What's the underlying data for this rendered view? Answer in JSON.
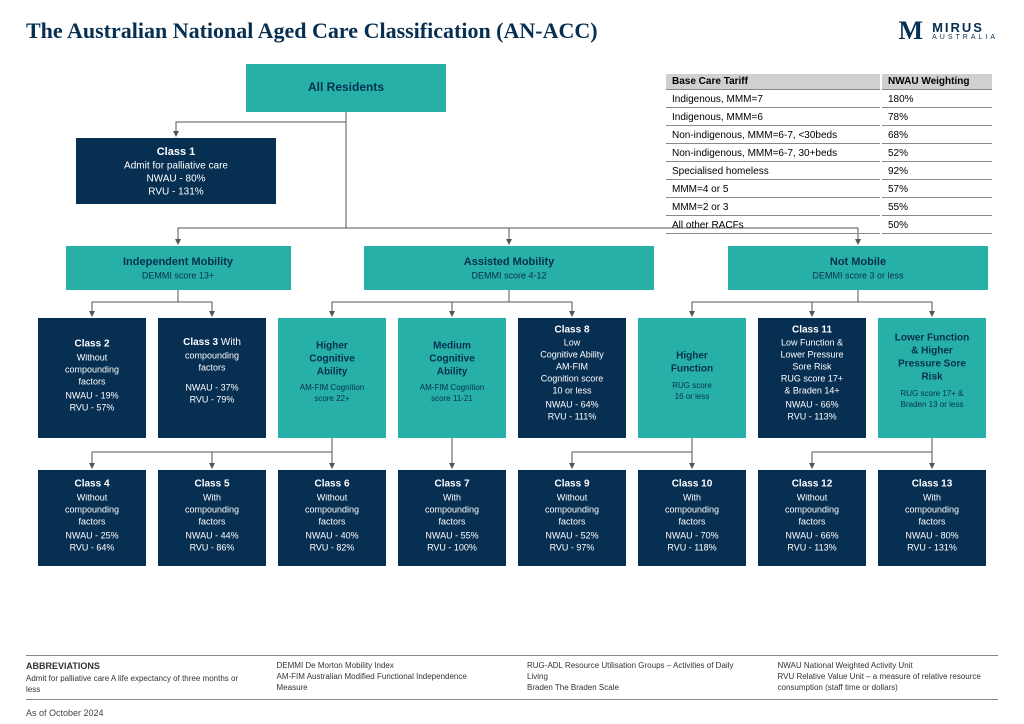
{
  "title": "The Australian National Aged Care Classification (AN-ACC)",
  "brand": {
    "name": "MIRUS",
    "sub": "AUSTRALIA"
  },
  "root": {
    "label": "All Residents"
  },
  "class1": {
    "h": "Class 1",
    "l1": "Admit for palliative care",
    "l2": "NWAU - 80%",
    "l3": "RVU - 131%"
  },
  "mob": {
    "ind": {
      "h": "Independent Mobility",
      "s": "DEMMI score 13+"
    },
    "ass": {
      "h": "Assisted Mobility",
      "s": "DEMMI score 4-12"
    },
    "not": {
      "h": "Not Mobile",
      "s": "DEMMI score 3 or less"
    }
  },
  "c2": {
    "h": "Class 2",
    "l1": "Without",
    "l2": "compounding",
    "l3": "factors",
    "l4": "NWAU - 19%",
    "l5": "RVU - 57%"
  },
  "c3": {
    "h": "Class 3",
    "h2": "With",
    "l1": "compounding",
    "l2": "factors",
    "l4": "NWAU - 37%",
    "l5": "RVU - 79%"
  },
  "hca": {
    "h": "Higher",
    "h2": "Cognitive",
    "h3": "Ability",
    "s": "AM-FIM Cognition",
    "s2": "score 22+"
  },
  "mca": {
    "h": "Medium",
    "h2": "Cognitive",
    "h3": "Ability",
    "s": "AM-FIM Cognition",
    "s2": "score 11-21"
  },
  "c8": {
    "h": "Class 8",
    "l1": "Low",
    "l2": "Cognitive Ability",
    "l3": "AM-FIM",
    "l4": "Cognition score",
    "l5": "10 or less",
    "l6": "NWAU - 64%",
    "l7": "RVU - 111%"
  },
  "hf": {
    "h": "Higher",
    "h2": "Function",
    "s": "RUG score",
    "s2": "16 or less"
  },
  "c11": {
    "h": "Class 11",
    "l1": "Low Function &",
    "l2": "Lower Pressure",
    "l3": "Sore Risk",
    "l4": "RUG score 17+",
    "l5": "& Braden 14+",
    "l6": "NWAU - 66%",
    "l7": "RVU - 113%"
  },
  "lfr": {
    "h": "Lower Function",
    "h2": "& Higher",
    "h3": "Pressure Sore",
    "h4": "Risk",
    "s": "RUG score 17+ &",
    "s2": "Braden 13 or less"
  },
  "c4": {
    "h": "Class 4",
    "l1": "Without",
    "l2": "compounding",
    "l3": "factors",
    "l4": "NWAU - 25%",
    "l5": "RVU - 64%"
  },
  "c5": {
    "h": "Class 5",
    "l1": "With",
    "l2": "compounding",
    "l3": "factors",
    "l4": "NWAU - 44%",
    "l5": "RVU - 86%"
  },
  "c6": {
    "h": "Class 6",
    "l1": "Without",
    "l2": "compounding",
    "l3": "factors",
    "l4": "NWAU - 40%",
    "l5": "RVU - 82%"
  },
  "c7": {
    "h": "Class 7",
    "l1": "With",
    "l2": "compounding",
    "l3": "factors",
    "l4": "NWAU - 55%",
    "l5": "RVU - 100%"
  },
  "c9": {
    "h": "Class 9",
    "l1": "Without",
    "l2": "compounding",
    "l3": "factors",
    "l4": "NWAU - 52%",
    "l5": "RVU - 97%"
  },
  "c10": {
    "h": "Class 10",
    "l1": "With",
    "l2": "compounding",
    "l3": "factors",
    "l4": "NWAU - 70%",
    "l5": "RVU - 118%"
  },
  "c12": {
    "h": "Class 12",
    "l1": "Without",
    "l2": "compounding",
    "l3": "factors",
    "l4": "NWAU - 66%",
    "l5": "RVU - 113%"
  },
  "c13": {
    "h": "Class 13",
    "l1": "With",
    "l2": "compounding",
    "l3": "factors",
    "l4": "NWAU - 80%",
    "l5": "RVU - 131%"
  },
  "tariff": {
    "h1": "Base Care Tariff",
    "h2": "NWAU Weighting",
    "rows": [
      [
        "Indigenous, MMM=7",
        "180%"
      ],
      [
        "Indigenous, MMM=6",
        "78%"
      ],
      [
        "Non-indigenous, MMM=6-7, <30beds",
        "68%"
      ],
      [
        "Non-indigenous, MMM=6-7, 30+beds",
        "52%"
      ],
      [
        "Specialised homeless",
        "92%"
      ],
      [
        "MMM=4 or 5",
        "57%"
      ],
      [
        "MMM=2 or 3",
        "55%"
      ],
      [
        "All other RACFs",
        "50%"
      ]
    ]
  },
  "abbr": {
    "hd": "ABBREVIATIONS",
    "a1": "Admit for palliative care  A life expectancy of three months or less",
    "b1": "DEMMI De Morton Mobility Index",
    "b2": "AM-FIM Australian Modified Functional Independence Measure",
    "c1": "RUG-ADL Resource Utilisation Groups – Activities of Daily Living",
    "c2": "Braden The Braden Scale",
    "d1": "NWAU National Weighted Activity Unit",
    "d2": "RVU Relative Value Unit – a measure of relative resource",
    "d3": "consumption (staff time or dollars)"
  },
  "asof": "As of October 2024"
}
